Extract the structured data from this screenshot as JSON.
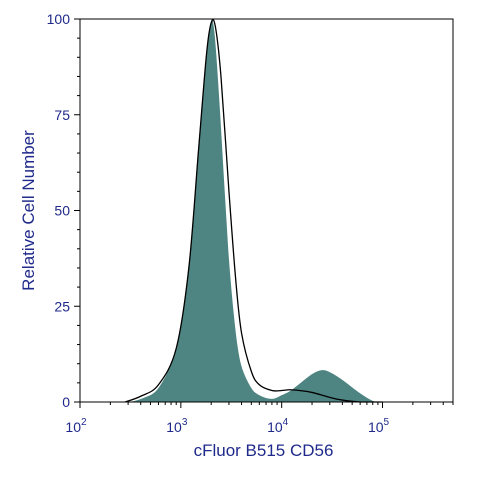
{
  "chart_data": {
    "type": "area",
    "title": "",
    "xlabel": "cFluor B515 CD56",
    "ylabel": "Relative Cell Number",
    "x_scale": "log",
    "xlim": [
      100,
      500000
    ],
    "ylim": [
      0,
      100
    ],
    "x_ticks": [
      {
        "value": 100,
        "base": "10",
        "exp": "2"
      },
      {
        "value": 1000,
        "base": "10",
        "exp": "3"
      },
      {
        "value": 10000,
        "base": "10",
        "exp": "4"
      },
      {
        "value": 100000,
        "base": "10",
        "exp": "5"
      }
    ],
    "y_ticks": [
      0,
      25,
      50,
      75,
      100
    ],
    "colors": {
      "fill": "#4e8582",
      "line": "#000000",
      "axis_text": "#1f2a8a"
    },
    "series": [
      {
        "style": "filled",
        "x": [
          280,
          400,
          600,
          900,
          1200,
          1500,
          1800,
          2000,
          2200,
          2500,
          3000,
          3500,
          4000,
          5000,
          6000,
          8000,
          10000,
          12000,
          15000,
          20000,
          25000,
          30000,
          40000,
          60000,
          80000,
          100000
        ],
        "y": [
          0,
          1,
          4,
          15,
          38,
          70,
          93,
          100,
          96,
          75,
          40,
          20,
          10,
          4,
          2,
          1,
          2,
          3,
          5,
          7.5,
          8.5,
          8,
          6,
          2.5,
          0.5,
          0
        ]
      },
      {
        "style": "outline",
        "x": [
          280,
          400,
          600,
          900,
          1200,
          1500,
          1800,
          2000,
          2200,
          2500,
          3000,
          3500,
          4000,
          5000,
          6000,
          8000,
          10000,
          12000,
          15000,
          20000,
          30000,
          40000,
          60000,
          100000
        ],
        "y": [
          0,
          1.5,
          4.5,
          14,
          35,
          66,
          91,
          99,
          98,
          85,
          55,
          32,
          18,
          8,
          4.5,
          3,
          3,
          3.2,
          3,
          2.5,
          1.2,
          0.5,
          0,
          0
        ]
      }
    ]
  }
}
